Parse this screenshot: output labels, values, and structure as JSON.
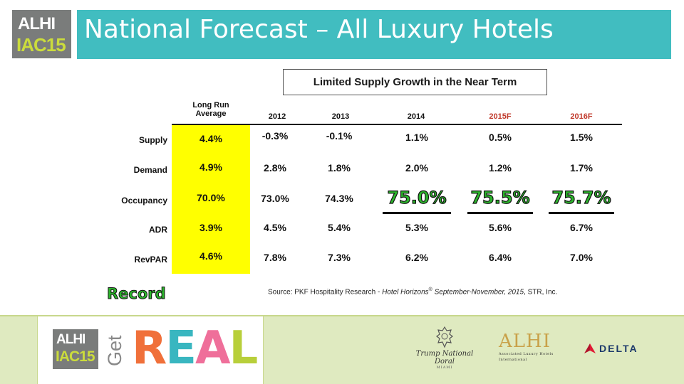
{
  "logo": {
    "line1": "ALHI",
    "line2": "IAC15"
  },
  "title": "National Forecast – All Luxury Hotels",
  "subtitle": "Limited Supply Growth in the Near Term",
  "table": {
    "headers": {
      "lra_line1": "Long Run",
      "lra_line2": "Average",
      "y2012": "2012",
      "y2013": "2013",
      "y2014": "2014",
      "y2015": "2015F",
      "y2016": "2016F"
    },
    "rows": {
      "supply": {
        "label": "Supply",
        "lra": "4.4%",
        "y2012": "-0.3%",
        "y2013": "-0.1%",
        "y2014": "1.1%",
        "y2015": "0.5%",
        "y2016": "1.5%"
      },
      "demand": {
        "label": "Demand",
        "lra": "4.9%",
        "y2012": "2.8%",
        "y2013": "1.8%",
        "y2014": "2.0%",
        "y2015": "1.2%",
        "y2016": "1.7%"
      },
      "occupancy": {
        "label": "Occupancy",
        "lra": "70.0%",
        "y2012": "73.0%",
        "y2013": "74.3%",
        "y2014": "75.0%",
        "y2015": "75.5%",
        "y2016": "75.7%"
      },
      "adr": {
        "label": "ADR",
        "lra": "3.9%",
        "y2012": "4.5%",
        "y2013": "5.4%",
        "y2014": "5.3%",
        "y2015": "5.6%",
        "y2016": "6.7%"
      },
      "revpar": {
        "label": "RevPAR",
        "lra": "4.6%",
        "y2012": "7.8%",
        "y2013": "7.3%",
        "y2014": "6.2%",
        "y2015": "6.4%",
        "y2016": "7.0%"
      }
    }
  },
  "record_label": "Record",
  "source": {
    "prefix": "Source: PKF Hospitality Research - ",
    "publication": "Hotel Horizons",
    "reg": "®",
    "edition": " September-November, 2015",
    "suffix": ", STR, Inc."
  },
  "footer": {
    "logo": {
      "line1": "ALHI",
      "line2": "IAC15"
    },
    "get": "Get",
    "real": [
      "R",
      "E",
      "A",
      "L"
    ],
    "trump": {
      "name": "Trump National Doral",
      "sub": "MIAMI"
    },
    "alhi": {
      "big": "ALHI",
      "line1": "Associated Luxury Hotels",
      "line2": "International"
    },
    "delta": "DELTA"
  },
  "colors": {
    "title_bar": "#41bdc0",
    "highlight": "#ffff00",
    "forecast": "#c0392b",
    "record_green": "#2cb52c",
    "footer_bg": "#dfeac0"
  }
}
